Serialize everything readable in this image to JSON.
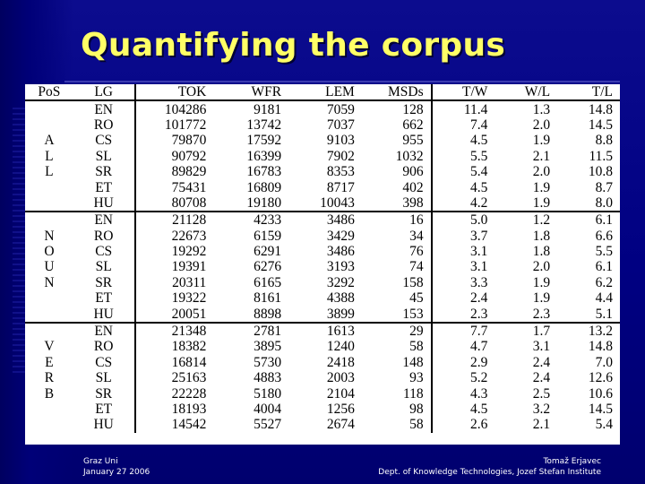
{
  "slide": {
    "title": "Quantifying the corpus",
    "footer_left": [
      "Graz Uni",
      "January 27 2006"
    ],
    "footer_right": [
      "Tomaž Erjavec",
      "Dept. of Knowledge Technologies, Jozef Stefan Institute"
    ]
  },
  "colors": {
    "background": "#000082",
    "title": "#ffff66",
    "table_bg": "#ffffff"
  },
  "table": {
    "headers": [
      "PoS",
      "LG",
      "TOK",
      "WFR",
      "LEM",
      "MSDs",
      "T/W",
      "W/L",
      "T/L"
    ],
    "groups": [
      {
        "pos_letters": [
          "A",
          "L",
          "L"
        ],
        "rows": [
          [
            "EN",
            "104286",
            "9181",
            "7059",
            "128",
            "11.4",
            "1.3",
            "14.8"
          ],
          [
            "RO",
            "101772",
            "13742",
            "7037",
            "662",
            "7.4",
            "2.0",
            "14.5"
          ],
          [
            "CS",
            "79870",
            "17592",
            "9103",
            "955",
            "4.5",
            "1.9",
            "8.8"
          ],
          [
            "SL",
            "90792",
            "16399",
            "7902",
            "1032",
            "5.5",
            "2.1",
            "11.5"
          ],
          [
            "SR",
            "89829",
            "16783",
            "8353",
            "906",
            "5.4",
            "2.0",
            "10.8"
          ],
          [
            "ET",
            "75431",
            "16809",
            "8717",
            "402",
            "4.5",
            "1.9",
            "8.7"
          ],
          [
            "HU",
            "80708",
            "19180",
            "10043",
            "398",
            "4.2",
            "1.9",
            "8.0"
          ]
        ]
      },
      {
        "pos_letters": [
          "N",
          "O",
          "U",
          "N"
        ],
        "rows": [
          [
            "EN",
            "21128",
            "4233",
            "3486",
            "16",
            "5.0",
            "1.2",
            "6.1"
          ],
          [
            "RO",
            "22673",
            "6159",
            "3429",
            "34",
            "3.7",
            "1.8",
            "6.6"
          ],
          [
            "CS",
            "19292",
            "6291",
            "3486",
            "76",
            "3.1",
            "1.8",
            "5.5"
          ],
          [
            "SL",
            "19391",
            "6276",
            "3193",
            "74",
            "3.1",
            "2.0",
            "6.1"
          ],
          [
            "SR",
            "20311",
            "6165",
            "3292",
            "158",
            "3.3",
            "1.9",
            "6.2"
          ],
          [
            "ET",
            "19322",
            "8161",
            "4388",
            "45",
            "2.4",
            "1.9",
            "4.4"
          ],
          [
            "HU",
            "20051",
            "8898",
            "3899",
            "153",
            "2.3",
            "2.3",
            "5.1"
          ]
        ]
      },
      {
        "pos_letters": [
          "V",
          "E",
          "R",
          "B"
        ],
        "rows": [
          [
            "EN",
            "21348",
            "2781",
            "1613",
            "29",
            "7.7",
            "1.7",
            "13.2"
          ],
          [
            "RO",
            "18382",
            "3895",
            "1240",
            "58",
            "4.7",
            "3.1",
            "14.8"
          ],
          [
            "CS",
            "16814",
            "5730",
            "2418",
            "148",
            "2.9",
            "2.4",
            "7.0"
          ],
          [
            "SL",
            "25163",
            "4883",
            "2003",
            "93",
            "5.2",
            "2.4",
            "12.6"
          ],
          [
            "SR",
            "22228",
            "5180",
            "2104",
            "118",
            "4.3",
            "2.5",
            "10.6"
          ],
          [
            "ET",
            "18193",
            "4004",
            "1256",
            "98",
            "4.5",
            "3.2",
            "14.5"
          ],
          [
            "HU",
            "14542",
            "5527",
            "2674",
            "58",
            "2.6",
            "2.1",
            "5.4"
          ]
        ]
      }
    ]
  }
}
